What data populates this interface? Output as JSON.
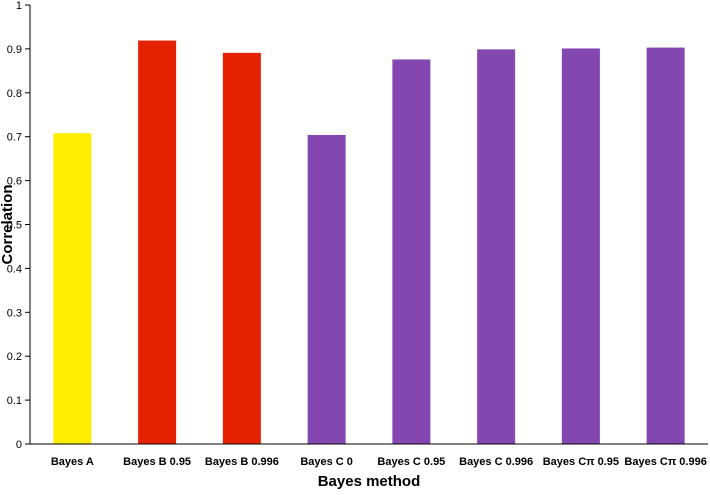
{
  "chart_data": {
    "type": "bar",
    "categories": [
      "Bayes A",
      "Bayes B 0.95",
      "Bayes B 0.996",
      "Bayes C 0",
      "Bayes C 0.95",
      "Bayes C 0.996",
      "Bayes Cπ 0.95",
      "Bayes Cπ 0.996"
    ],
    "values": [
      0.708,
      0.919,
      0.891,
      0.704,
      0.876,
      0.899,
      0.901,
      0.903
    ],
    "colors": [
      "#FFEE00",
      "#E52200",
      "#E52200",
      "#8447B0",
      "#8447B0",
      "#8447B0",
      "#8447B0",
      "#8447B0"
    ],
    "title": "",
    "xlabel": "Bayes method",
    "ylabel": "Correlation",
    "ylim": [
      0,
      1
    ],
    "yticks": [
      "0",
      "0.1",
      "0.2",
      "0.3",
      "0.4",
      "0.5",
      "0.6",
      "0.7",
      "0.8",
      "0.9",
      "1"
    ],
    "grid": false,
    "legend": "none"
  }
}
